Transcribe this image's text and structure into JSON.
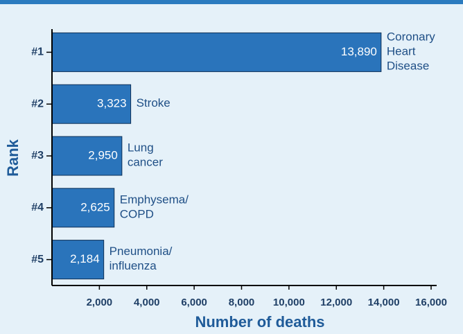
{
  "chart_data": {
    "type": "barh",
    "categories": [
      "#1",
      "#2",
      "#3",
      "#4",
      "#5"
    ],
    "values": [
      13890,
      3323,
      2950,
      2625,
      2184
    ],
    "value_labels": [
      "13,890",
      "3,323",
      "2,950",
      "2,625",
      "2,184"
    ],
    "bar_names": [
      [
        "Coronary",
        "Heart",
        "Disease"
      ],
      [
        "Stroke"
      ],
      [
        "Lung",
        "cancer"
      ],
      [
        "Emphysema/",
        "COPD"
      ],
      [
        "Pneumonia/",
        "influenza"
      ]
    ],
    "color": "#2a74bb",
    "xlabel": "Number of deaths",
    "ylabel": "Rank",
    "xlim": [
      0,
      16000
    ],
    "xticks": [
      {
        "value": 2000,
        "label": "2,000"
      },
      {
        "value": 4000,
        "label": "4,000"
      },
      {
        "value": 6000,
        "label": "6,000"
      },
      {
        "value": 8000,
        "label": "8,000"
      },
      {
        "value": 10000,
        "label": "10,000"
      },
      {
        "value": 12000,
        "label": "12,000"
      },
      {
        "value": 14000,
        "label": "14,000"
      },
      {
        "value": 16000,
        "label": "16,000"
      }
    ]
  }
}
